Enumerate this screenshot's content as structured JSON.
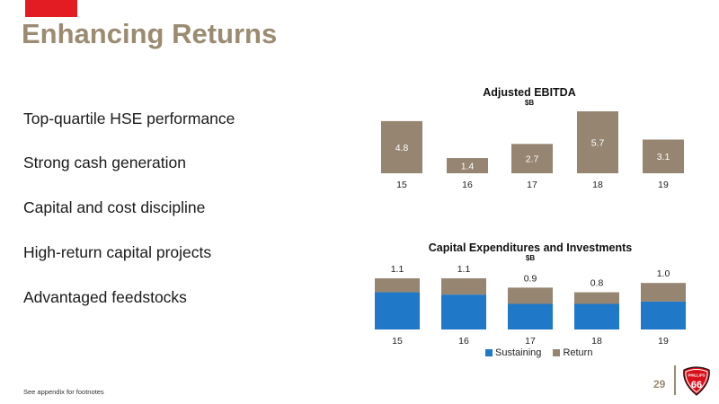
{
  "slide": {
    "title": "Enhancing Returns",
    "bullets": [
      "Top-quartile HSE performance",
      "Strong cash generation",
      "Capital and cost discipline",
      "High-return capital projects",
      "Advantaged feedstocks"
    ],
    "footnote": "See appendix for footnotes",
    "page_number": "29",
    "logo_text": "PHILLIPS 66",
    "colors": {
      "accent_red": "#e31b23",
      "title": "#9b8b71",
      "page_number": "#9b8b71",
      "bar_ebitda": "#958571",
      "sustaining": "#1f78c8",
      "return": "#958571",
      "logo_red": "#d9101a"
    }
  },
  "chart_data": [
    {
      "type": "bar",
      "title": "Adjusted EBITDA",
      "subtitle": "$B",
      "categories": [
        "15",
        "16",
        "17",
        "18",
        "19"
      ],
      "values": [
        4.8,
        1.4,
        2.7,
        5.7,
        3.1
      ],
      "labels": [
        "4.8",
        "1.4",
        "2.7",
        "5.7",
        "3.1"
      ],
      "ylim": [
        0,
        5.7
      ],
      "grid": false
    },
    {
      "type": "bar",
      "stacked": true,
      "title": "Capital Expenditures and Investments",
      "subtitle": "$B",
      "categories": [
        "15",
        "16",
        "17",
        "18",
        "19"
      ],
      "series": [
        {
          "name": "Sustaining",
          "values": [
            0.8,
            0.75,
            0.55,
            0.55,
            0.6
          ]
        },
        {
          "name": "Return",
          "values": [
            0.3,
            0.35,
            0.35,
            0.25,
            0.4
          ]
        }
      ],
      "totals": [
        "1.1",
        "1.1",
        "0.9",
        "0.8",
        "1.0"
      ],
      "ylim": [
        0,
        1.1
      ],
      "legend": "bottom",
      "grid": false
    }
  ]
}
